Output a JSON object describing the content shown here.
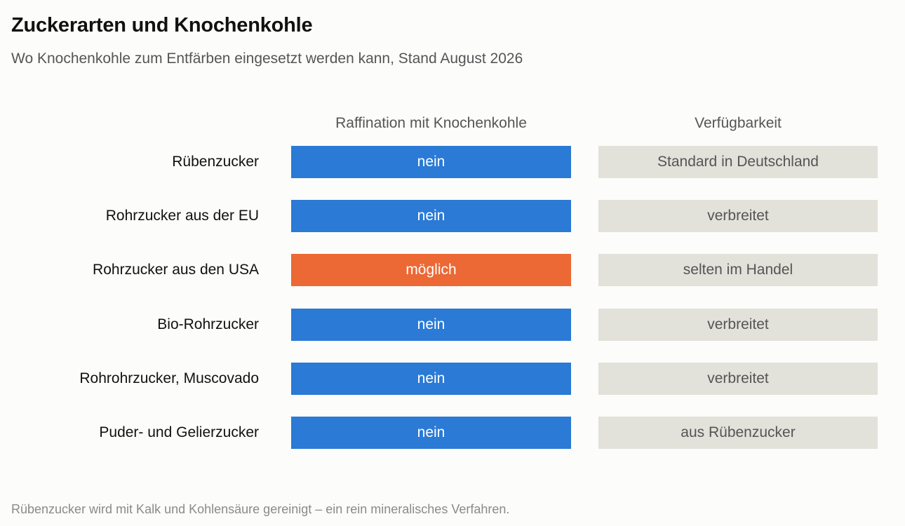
{
  "chart_data": {
    "type": "table",
    "title": "Zuckerarten und Knochenkohle",
    "subtitle": "Wo Knochenkohle zum Entfärben eingesetzt werden kann, Stand August 2026",
    "columns": [
      "Raffination mit Knochenkohle",
      "Verfügbarkeit"
    ],
    "rows": [
      {
        "label": "Rübenzucker",
        "raffination": "nein",
        "availability": "Standard in Deutschland"
      },
      {
        "label": "Rohrzucker aus der EU",
        "raffination": "nein",
        "availability": "verbreitet"
      },
      {
        "label": "Rohrzucker aus den USA",
        "raffination": "möglich",
        "availability": "selten im Handel"
      },
      {
        "label": "Bio-Rohrzucker",
        "raffination": "nein",
        "availability": "verbreitet"
      },
      {
        "label": "Rohrohrzucker, Muscovado",
        "raffination": "nein",
        "availability": "verbreitet"
      },
      {
        "label": "Puder- und Gelierzucker",
        "raffination": "nein",
        "availability": "aus Rübenzucker"
      }
    ],
    "colors": {
      "nein": "#2a7ad6",
      "möglich": "#ec6834",
      "availability": "#e2e1da"
    },
    "footnote": "Rübenzucker wird mit Kalk und Kohlensäure gereinigt – ein rein mineralisches Verfahren."
  }
}
